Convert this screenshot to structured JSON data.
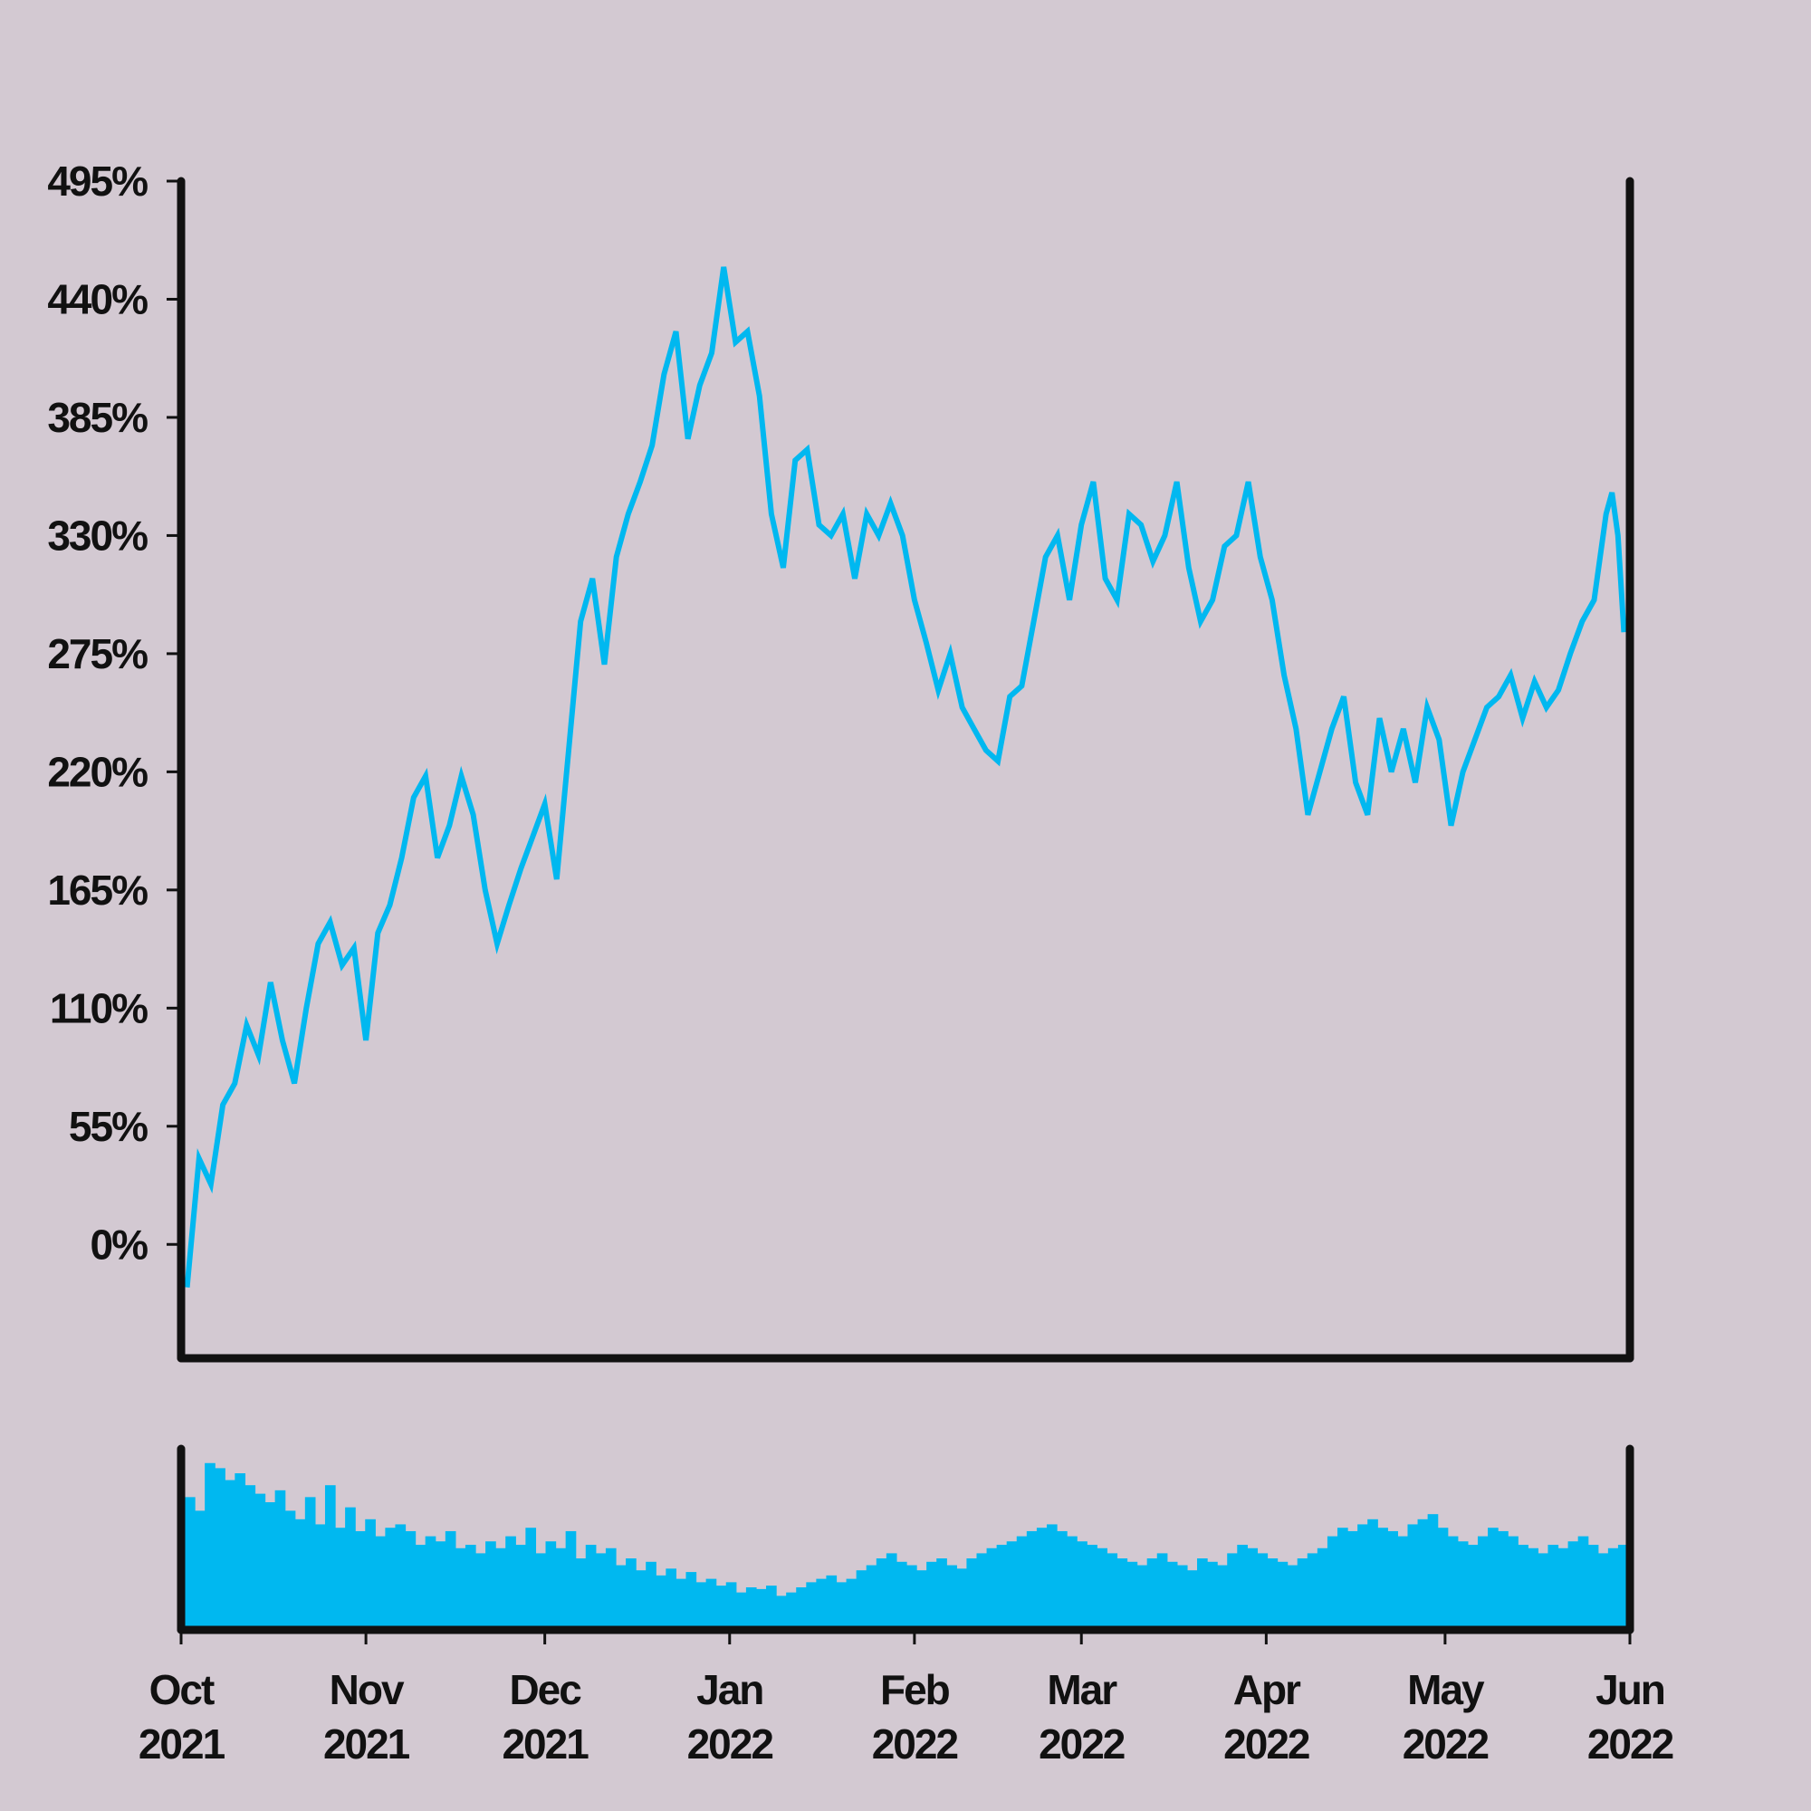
{
  "chart_data": {
    "type": "line",
    "title": "",
    "xlabel": "",
    "ylabel": "",
    "background": "#d3c9d2",
    "line_color": "#00b8f0",
    "volume_color": "#00b8f0",
    "axis_color": "#111111",
    "grid": false,
    "y_ticks": [
      "0%",
      "55%",
      "110%",
      "165%",
      "220%",
      "275%",
      "330%",
      "385%",
      "440%",
      "495%"
    ],
    "y_tick_values": [
      0,
      55,
      110,
      165,
      220,
      275,
      330,
      385,
      440,
      495
    ],
    "ylim": [
      -53,
      495
    ],
    "xlim": [
      "2021-10-01",
      "2022-06-01"
    ],
    "x_ticks": [
      {
        "date": "2021-10-01",
        "month": "Oct",
        "year": "2021"
      },
      {
        "date": "2021-11-01",
        "month": "Nov",
        "year": "2021"
      },
      {
        "date": "2021-12-01",
        "month": "Dec",
        "year": "2021"
      },
      {
        "date": "2022-01-01",
        "month": "Jan",
        "year": "2022"
      },
      {
        "date": "2022-02-01",
        "month": "Feb",
        "year": "2022"
      },
      {
        "date": "2022-03-01",
        "month": "Mar",
        "year": "2022"
      },
      {
        "date": "2022-04-01",
        "month": "Apr",
        "year": "2022"
      },
      {
        "date": "2022-05-01",
        "month": "May",
        "year": "2022"
      },
      {
        "date": "2022-06-01",
        "month": "Jun",
        "year": "2022"
      }
    ],
    "series": [
      {
        "points": [
          [
            "2021-10-02",
            -20
          ],
          [
            "2021-10-04",
            40
          ],
          [
            "2021-10-06",
            28
          ],
          [
            "2021-10-08",
            65
          ],
          [
            "2021-10-10",
            75
          ],
          [
            "2021-10-12",
            102
          ],
          [
            "2021-10-14",
            88
          ],
          [
            "2021-10-16",
            122
          ],
          [
            "2021-10-18",
            95
          ],
          [
            "2021-10-20",
            75
          ],
          [
            "2021-10-22",
            110
          ],
          [
            "2021-10-24",
            140
          ],
          [
            "2021-10-26",
            150
          ],
          [
            "2021-10-28",
            130
          ],
          [
            "2021-10-30",
            138
          ],
          [
            "2021-11-01",
            95
          ],
          [
            "2021-11-03",
            145
          ],
          [
            "2021-11-05",
            158
          ],
          [
            "2021-11-07",
            180
          ],
          [
            "2021-11-09",
            208
          ],
          [
            "2021-11-11",
            218
          ],
          [
            "2021-11-13",
            180
          ],
          [
            "2021-11-15",
            195
          ],
          [
            "2021-11-17",
            218
          ],
          [
            "2021-11-19",
            200
          ],
          [
            "2021-11-21",
            165
          ],
          [
            "2021-11-23",
            140
          ],
          [
            "2021-11-25",
            158
          ],
          [
            "2021-11-27",
            175
          ],
          [
            "2021-11-29",
            190
          ],
          [
            "2021-12-01",
            205
          ],
          [
            "2021-12-03",
            170
          ],
          [
            "2021-12-05",
            230
          ],
          [
            "2021-12-07",
            290
          ],
          [
            "2021-12-09",
            310
          ],
          [
            "2021-12-11",
            270
          ],
          [
            "2021-12-13",
            320
          ],
          [
            "2021-12-15",
            340
          ],
          [
            "2021-12-17",
            355
          ],
          [
            "2021-12-19",
            372
          ],
          [
            "2021-12-21",
            405
          ],
          [
            "2021-12-23",
            425
          ],
          [
            "2021-12-25",
            375
          ],
          [
            "2021-12-27",
            400
          ],
          [
            "2021-12-29",
            415
          ],
          [
            "2021-12-31",
            455
          ],
          [
            "2022-01-02",
            420
          ],
          [
            "2022-01-04",
            425
          ],
          [
            "2022-01-06",
            395
          ],
          [
            "2022-01-08",
            340
          ],
          [
            "2022-01-10",
            315
          ],
          [
            "2022-01-12",
            365
          ],
          [
            "2022-01-14",
            370
          ],
          [
            "2022-01-16",
            335
          ],
          [
            "2022-01-18",
            330
          ],
          [
            "2022-01-20",
            340
          ],
          [
            "2022-01-22",
            310
          ],
          [
            "2022-01-24",
            340
          ],
          [
            "2022-01-26",
            330
          ],
          [
            "2022-01-28",
            345
          ],
          [
            "2022-01-30",
            330
          ],
          [
            "2022-02-01",
            300
          ],
          [
            "2022-02-03",
            280
          ],
          [
            "2022-02-05",
            258
          ],
          [
            "2022-02-07",
            275
          ],
          [
            "2022-02-09",
            250
          ],
          [
            "2022-02-11",
            240
          ],
          [
            "2022-02-13",
            230
          ],
          [
            "2022-02-15",
            225
          ],
          [
            "2022-02-17",
            255
          ],
          [
            "2022-02-19",
            260
          ],
          [
            "2022-02-21",
            290
          ],
          [
            "2022-02-23",
            320
          ],
          [
            "2022-02-25",
            330
          ],
          [
            "2022-02-27",
            300
          ],
          [
            "2022-03-01",
            335
          ],
          [
            "2022-03-03",
            355
          ],
          [
            "2022-03-05",
            310
          ],
          [
            "2022-03-07",
            300
          ],
          [
            "2022-03-09",
            340
          ],
          [
            "2022-03-11",
            335
          ],
          [
            "2022-03-13",
            318
          ],
          [
            "2022-03-15",
            330
          ],
          [
            "2022-03-17",
            355
          ],
          [
            "2022-03-19",
            315
          ],
          [
            "2022-03-21",
            290
          ],
          [
            "2022-03-23",
            300
          ],
          [
            "2022-03-25",
            325
          ],
          [
            "2022-03-27",
            330
          ],
          [
            "2022-03-29",
            355
          ],
          [
            "2022-03-31",
            320
          ],
          [
            "2022-04-02",
            300
          ],
          [
            "2022-04-04",
            265
          ],
          [
            "2022-04-06",
            240
          ],
          [
            "2022-04-08",
            200
          ],
          [
            "2022-04-10",
            220
          ],
          [
            "2022-04-12",
            240
          ],
          [
            "2022-04-14",
            255
          ],
          [
            "2022-04-16",
            215
          ],
          [
            "2022-04-18",
            200
          ],
          [
            "2022-04-20",
            245
          ],
          [
            "2022-04-22",
            220
          ],
          [
            "2022-04-24",
            240
          ],
          [
            "2022-04-26",
            215
          ],
          [
            "2022-04-28",
            250
          ],
          [
            "2022-04-30",
            235
          ],
          [
            "2022-05-02",
            195
          ],
          [
            "2022-05-04",
            220
          ],
          [
            "2022-05-06",
            235
          ],
          [
            "2022-05-08",
            250
          ],
          [
            "2022-05-10",
            255
          ],
          [
            "2022-05-12",
            265
          ],
          [
            "2022-05-14",
            245
          ],
          [
            "2022-05-16",
            262
          ],
          [
            "2022-05-18",
            250
          ],
          [
            "2022-05-20",
            258
          ],
          [
            "2022-05-22",
            275
          ],
          [
            "2022-05-24",
            290
          ],
          [
            "2022-05-26",
            300
          ],
          [
            "2022-05-28",
            340
          ],
          [
            "2022-05-29",
            350
          ],
          [
            "2022-05-30",
            330
          ],
          [
            "2022-05-31",
            285
          ]
        ]
      }
    ],
    "volume": [
      78,
      70,
      98,
      95,
      88,
      92,
      85,
      80,
      75,
      82,
      70,
      65,
      78,
      62,
      85,
      60,
      72,
      58,
      65,
      55,
      60,
      62,
      58,
      50,
      55,
      52,
      58,
      48,
      50,
      45,
      52,
      48,
      55,
      50,
      60,
      45,
      52,
      48,
      58,
      42,
      50,
      45,
      48,
      38,
      42,
      35,
      40,
      32,
      36,
      30,
      34,
      28,
      30,
      26,
      28,
      22,
      25,
      24,
      26,
      20,
      22,
      25,
      28,
      30,
      32,
      28,
      30,
      35,
      38,
      42,
      45,
      40,
      38,
      35,
      40,
      42,
      38,
      36,
      42,
      45,
      48,
      50,
      52,
      55,
      58,
      60,
      62,
      58,
      55,
      52,
      50,
      48,
      45,
      42,
      40,
      38,
      42,
      45,
      40,
      38,
      35,
      42,
      40,
      38,
      45,
      50,
      48,
      45,
      42,
      40,
      38,
      42,
      45,
      48,
      55,
      60,
      58,
      62,
      65,
      60,
      58,
      55,
      62,
      65,
      68,
      60,
      55,
      52,
      50,
      55,
      60,
      58,
      55,
      50,
      48,
      45,
      50,
      48,
      52,
      55,
      50,
      45,
      48,
      50
    ]
  }
}
